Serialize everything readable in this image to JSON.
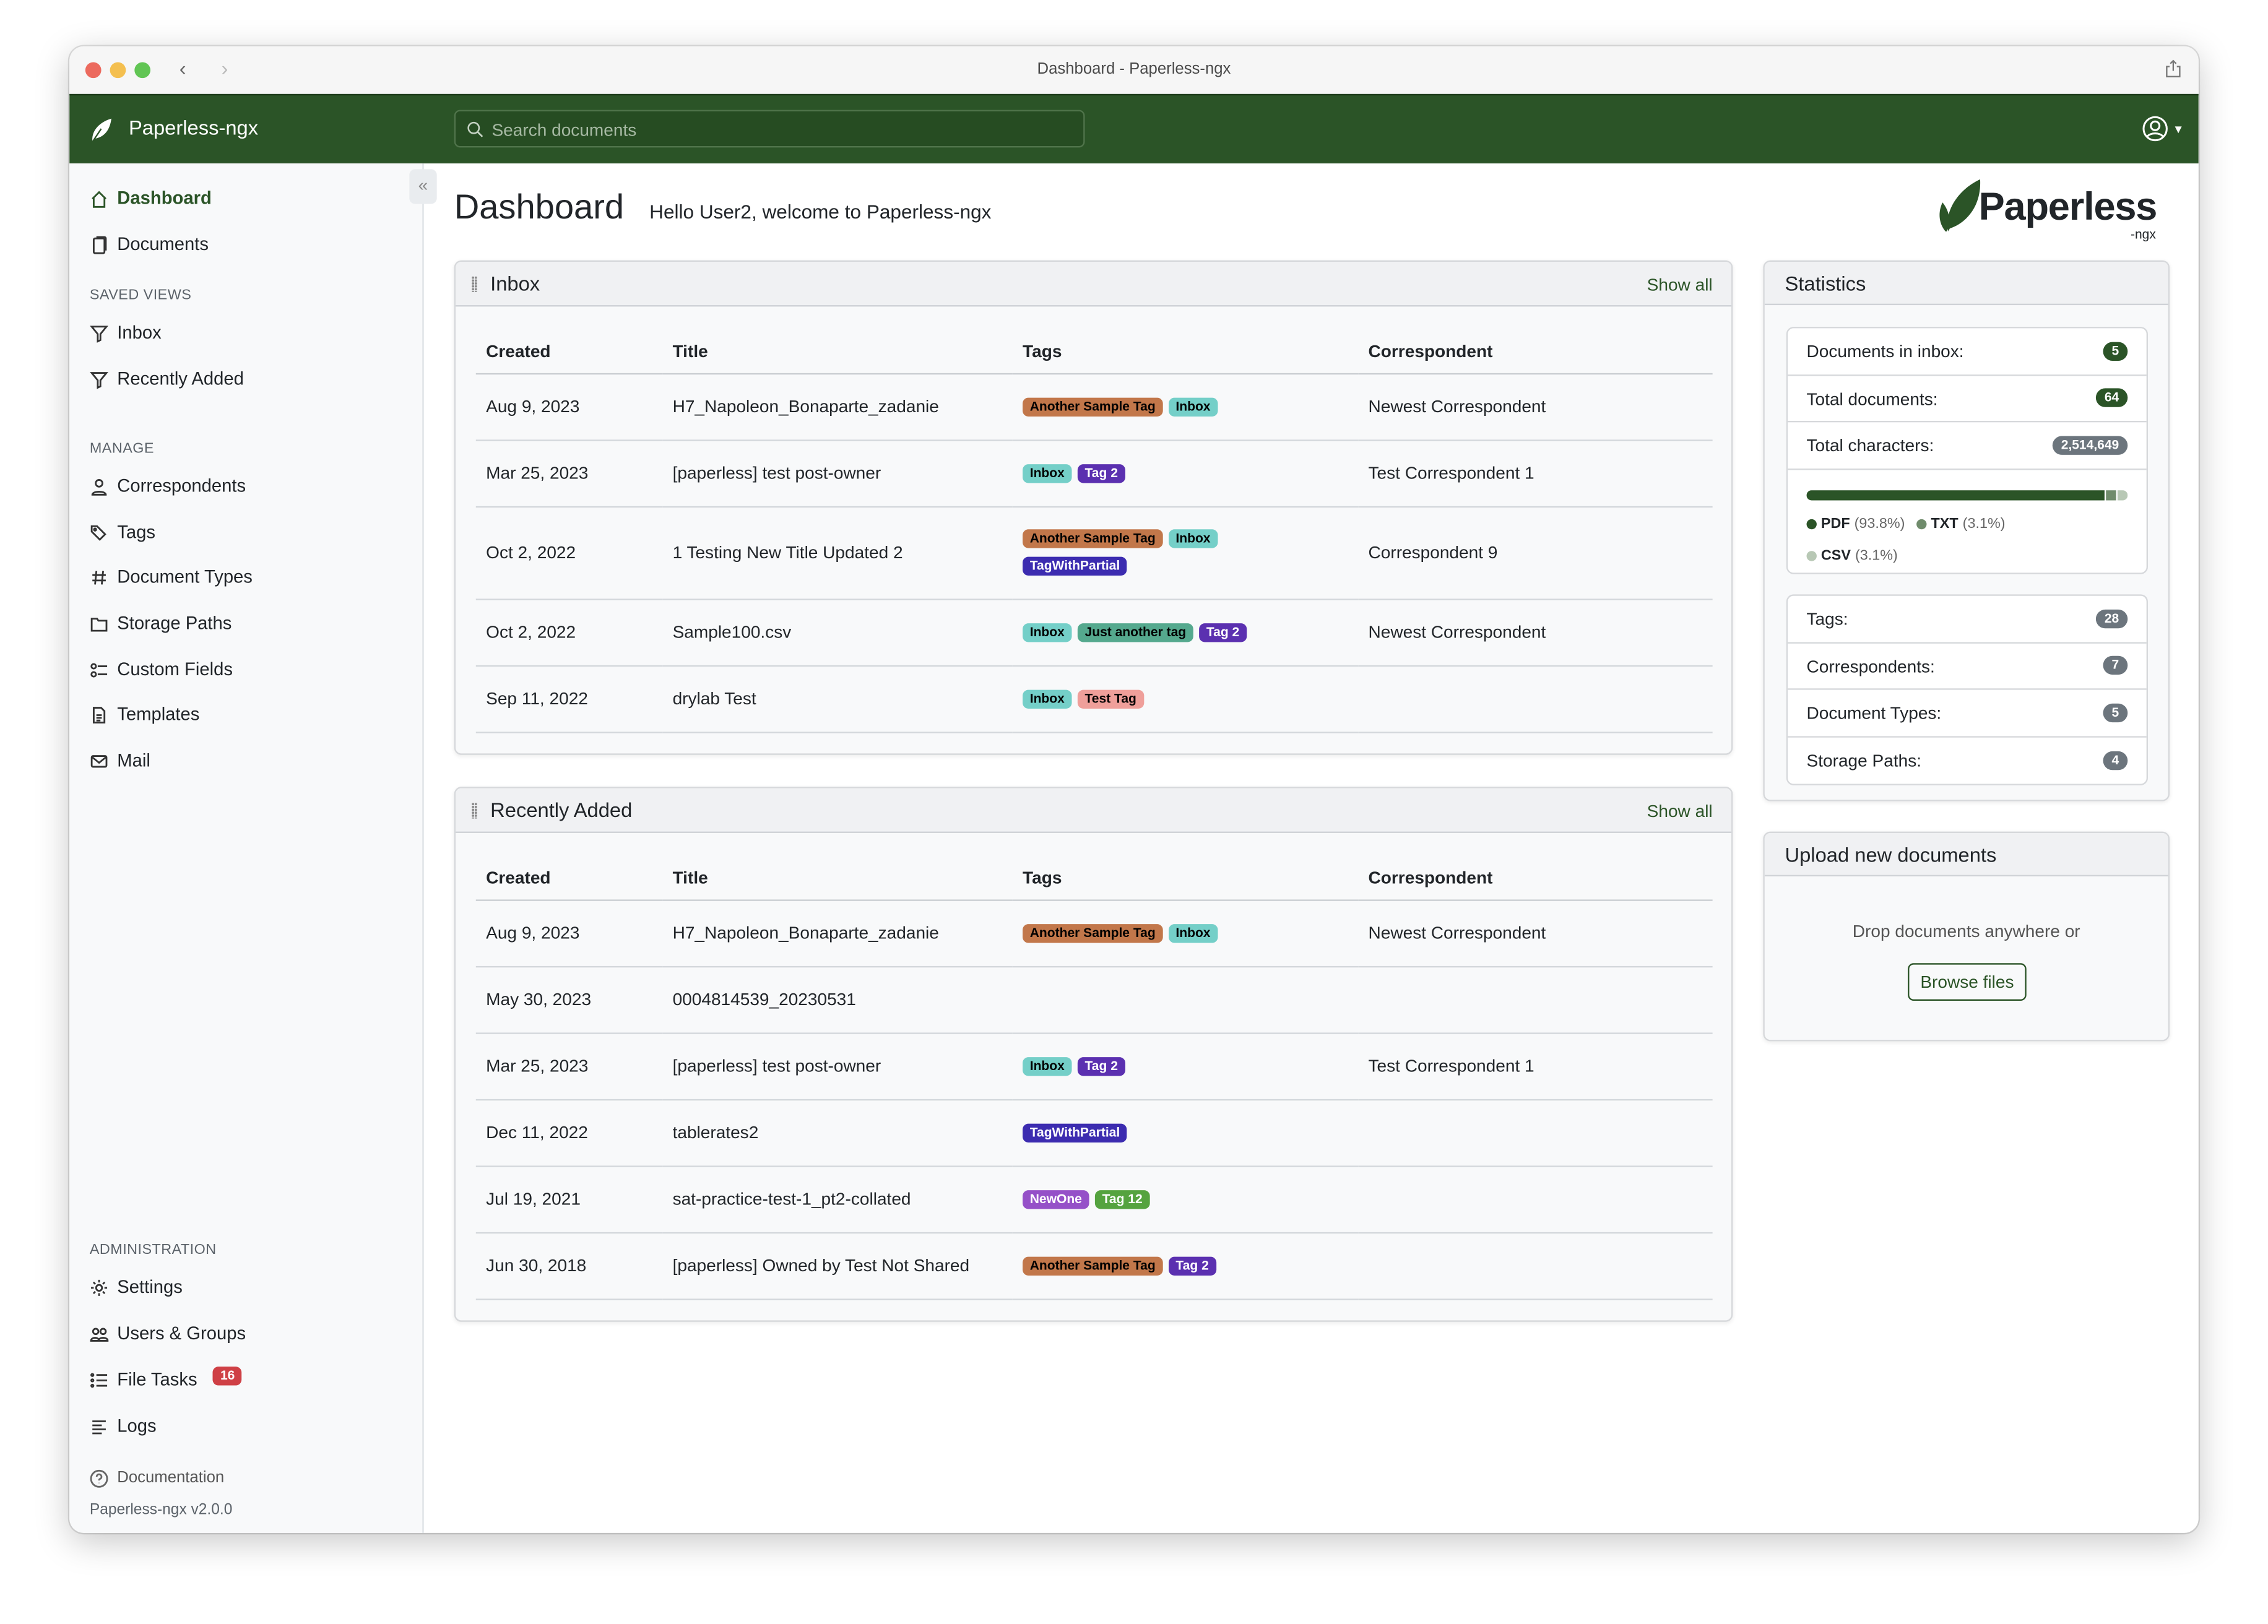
{
  "window": {
    "title": "Dashboard - Paperless-ngx"
  },
  "navbar": {
    "brand": "Paperless-ngx",
    "search_placeholder": "Search documents",
    "color": "#2b5427"
  },
  "sidebar": {
    "main": [
      {
        "label": "Dashboard",
        "icon": "house-icon",
        "active": true
      },
      {
        "label": "Documents",
        "icon": "files-icon"
      }
    ],
    "saved_views_header": "SAVED VIEWS",
    "saved_views": [
      {
        "label": "Inbox",
        "icon": "funnel-icon"
      },
      {
        "label": "Recently Added",
        "icon": "funnel-icon"
      }
    ],
    "manage_header": "MANAGE",
    "manage": [
      {
        "label": "Correspondents",
        "icon": "person-icon"
      },
      {
        "label": "Tags",
        "icon": "tags-icon"
      },
      {
        "label": "Document Types",
        "icon": "hash-icon"
      },
      {
        "label": "Storage Paths",
        "icon": "folder-icon"
      },
      {
        "label": "Custom Fields",
        "icon": "ui-radios-icon"
      },
      {
        "label": "Templates",
        "icon": "file-text-icon"
      },
      {
        "label": "Mail",
        "icon": "envelope-icon"
      }
    ],
    "admin_header": "ADMINISTRATION",
    "admin": [
      {
        "label": "Settings",
        "icon": "gear-icon"
      },
      {
        "label": "Users & Groups",
        "icon": "people-icon"
      },
      {
        "label": "File Tasks",
        "icon": "list-task-icon",
        "badge": "16"
      },
      {
        "label": "Logs",
        "icon": "text-left-icon"
      }
    ],
    "documentation": "Documentation",
    "version": "Paperless-ngx v2.0.0"
  },
  "header": {
    "title": "Dashboard",
    "welcome": "Hello User2, welcome to Paperless-ngx",
    "logo_text": "Paperless",
    "logo_sub": "-ngx"
  },
  "columns": [
    "Created",
    "Title",
    "Tags",
    "Correspondent"
  ],
  "tag_colors": {
    "Another Sample Tag": [
      "#c2774a",
      "#000"
    ],
    "Inbox": [
      "#74cfc8",
      "#000"
    ],
    "Tag 2": [
      "#5b30b0",
      "#fff"
    ],
    "TagWithPartial": [
      "#3c2cb0",
      "#fff"
    ],
    "Just another tag": [
      "#55a98e",
      "#000"
    ],
    "Test Tag": [
      "#ef9f9a",
      "#000"
    ],
    "NewOne": [
      "#9550c8",
      "#fff"
    ],
    "Tag 12": [
      "#55a33f",
      "#fff"
    ]
  },
  "inbox": {
    "title": "Inbox",
    "show_all": "Show all",
    "rows": [
      {
        "created": "Aug 9, 2023",
        "title": "H7_Napoleon_Bonaparte_zadanie",
        "tags": [
          "Another Sample Tag",
          "Inbox"
        ],
        "correspondent": "Newest Correspondent"
      },
      {
        "created": "Mar 25, 2023",
        "title": "[paperless] test post-owner",
        "tags": [
          "Inbox",
          "Tag 2"
        ],
        "correspondent": "Test Correspondent 1"
      },
      {
        "created": "Oct 2, 2022",
        "title": "1 Testing New Title Updated 2",
        "tags": [
          "Another Sample Tag",
          "Inbox",
          "TagWithPartial"
        ],
        "correspondent": "Correspondent 9"
      },
      {
        "created": "Oct 2, 2022",
        "title": "Sample100.csv",
        "tags": [
          "Inbox",
          "Just another tag",
          "Tag 2"
        ],
        "correspondent": "Newest Correspondent"
      },
      {
        "created": "Sep 11, 2022",
        "title": "drylab Test",
        "tags": [
          "Inbox",
          "Test Tag"
        ],
        "correspondent": ""
      }
    ]
  },
  "recent": {
    "title": "Recently Added",
    "show_all": "Show all",
    "rows": [
      {
        "created": "Aug 9, 2023",
        "title": "H7_Napoleon_Bonaparte_zadanie",
        "tags": [
          "Another Sample Tag",
          "Inbox"
        ],
        "correspondent": "Newest Correspondent"
      },
      {
        "created": "May 30, 2023",
        "title": "0004814539_20230531",
        "tags": [],
        "correspondent": ""
      },
      {
        "created": "Mar 25, 2023",
        "title": "[paperless] test post-owner",
        "tags": [
          "Inbox",
          "Tag 2"
        ],
        "correspondent": "Test Correspondent 1"
      },
      {
        "created": "Dec 11, 2022",
        "title": "tablerates2",
        "tags": [
          "TagWithPartial"
        ],
        "correspondent": ""
      },
      {
        "created": "Jul 19, 2021",
        "title": "sat-practice-test-1_pt2-collated",
        "tags": [
          "NewOne",
          "Tag 12"
        ],
        "correspondent": ""
      },
      {
        "created": "Jun 30, 2018",
        "title": "[paperless] Owned by Test Not Shared",
        "tags": [
          "Another Sample Tag",
          "Tag 2"
        ],
        "correspondent": ""
      }
    ]
  },
  "statistics": {
    "title": "Statistics",
    "group1": [
      {
        "label": "Documents in inbox:",
        "value": "5",
        "color": "#2b5427"
      },
      {
        "label": "Total documents:",
        "value": "64",
        "color": "#2b5427"
      },
      {
        "label": "Total characters:",
        "value": "2,514,649",
        "color": "#6c757d"
      }
    ],
    "file_types": [
      {
        "name": "PDF",
        "pct": "(93.8%)",
        "value": 93.8,
        "color": "#2b5427"
      },
      {
        "name": "TXT",
        "pct": "(3.1%)",
        "value": 3.1,
        "color": "#708c6c"
      },
      {
        "name": "CSV",
        "pct": "(3.1%)",
        "value": 3.1,
        "color": "#b8c8b5"
      }
    ],
    "group2": [
      {
        "label": "Tags:",
        "value": "28"
      },
      {
        "label": "Correspondents:",
        "value": "7"
      },
      {
        "label": "Document Types:",
        "value": "5"
      },
      {
        "label": "Storage Paths:",
        "value": "4"
      }
    ]
  },
  "upload": {
    "title": "Upload new documents",
    "hint": "Drop documents anywhere or",
    "button": "Browse files"
  }
}
